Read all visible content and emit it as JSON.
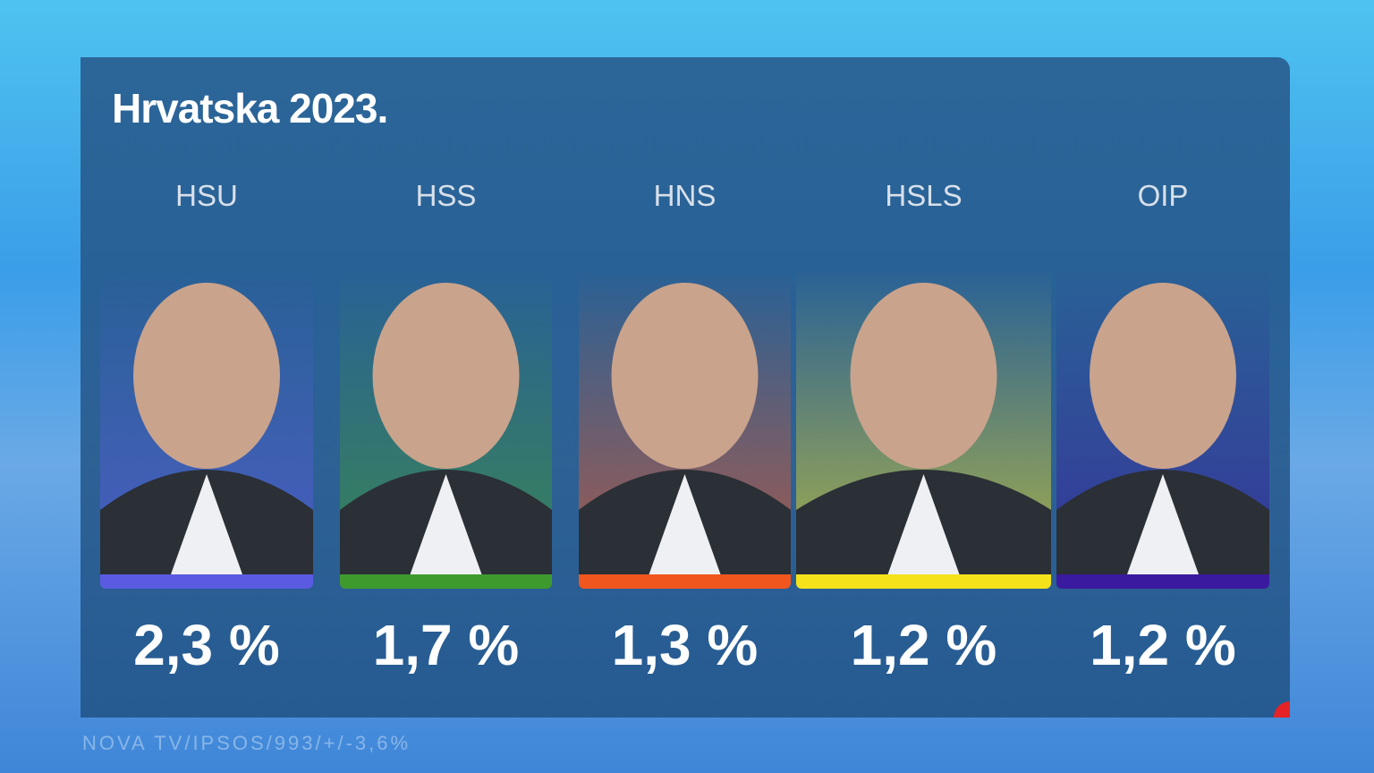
{
  "title": "Hrvatska 2023.",
  "parties": [
    {
      "name": "HSU",
      "value": "2,3 %",
      "color": "#5a5be0"
    },
    {
      "name": "HSS",
      "value": "1,7 %",
      "color": "#3f9a2e"
    },
    {
      "name": "HNS",
      "value": "1,3 %",
      "color": "#f0561e"
    },
    {
      "name": "HSLS",
      "value": "1,2 %",
      "color": "#f5e21a"
    },
    {
      "name": "OIP",
      "value": "1,2 %",
      "color": "#3a1a9e"
    }
  ],
  "source": "NOVA TV/IPSOS/993/+/-3,6%"
}
